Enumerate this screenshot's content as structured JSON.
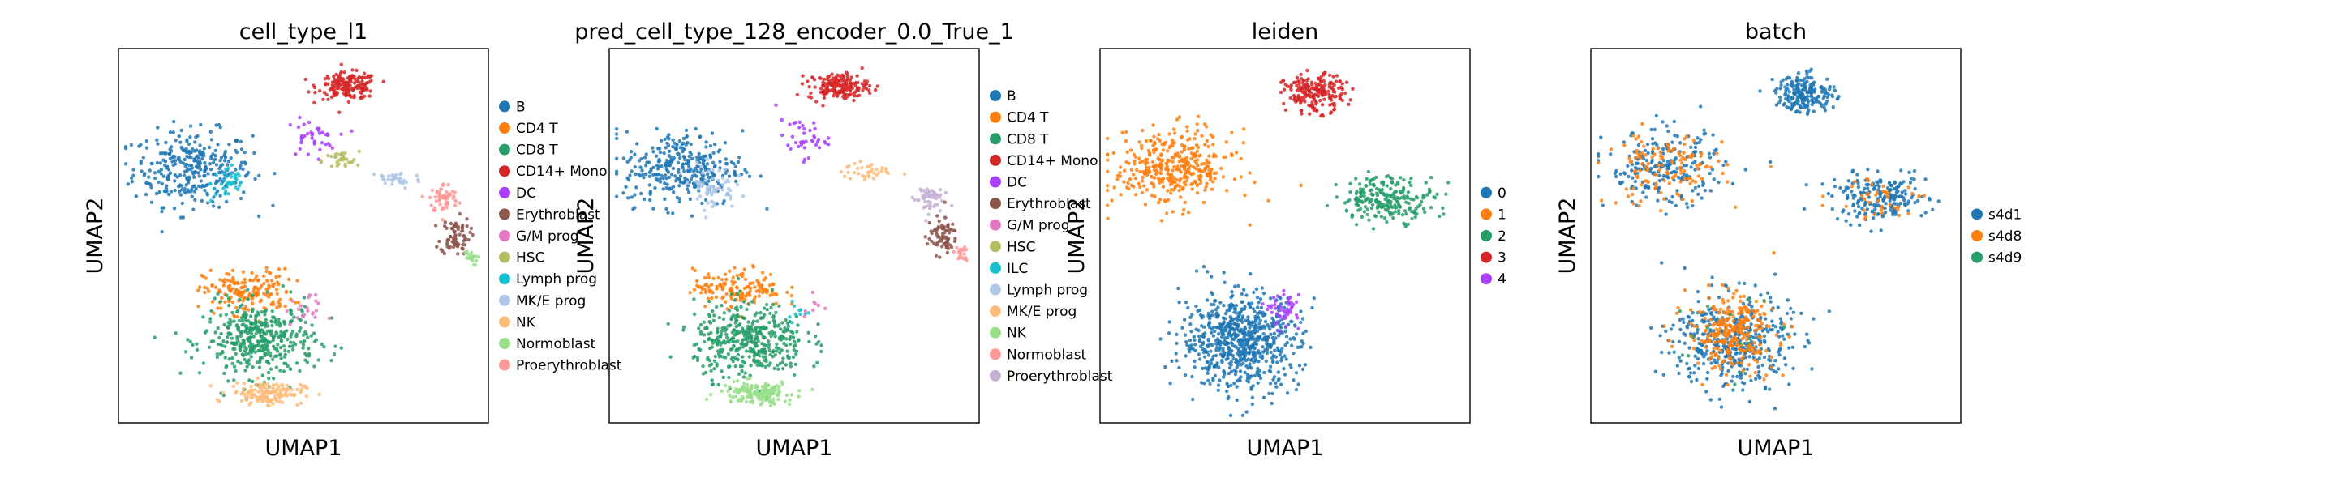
{
  "chart_data": [
    {
      "type": "scatter",
      "title": "cell_type_l1",
      "xlabel": "UMAP1",
      "ylabel": "UMAP2",
      "grid": false,
      "legend_position": "right",
      "legend": [
        {
          "label": "B",
          "color": "#1f77b4"
        },
        {
          "label": "CD4 T",
          "color": "#ff7f0e"
        },
        {
          "label": "CD8 T",
          "color": "#279e68"
        },
        {
          "label": "CD14+ Mono",
          "color": "#d62728"
        },
        {
          "label": "DC",
          "color": "#aa40fc"
        },
        {
          "label": "Erythroblast",
          "color": "#8c564b"
        },
        {
          "label": "G/M prog",
          "color": "#e377c2"
        },
        {
          "label": "HSC",
          "color": "#b5bd61"
        },
        {
          "label": "Lymph prog",
          "color": "#17becf"
        },
        {
          "label": "MK/E prog",
          "color": "#aec7e8"
        },
        {
          "label": "NK",
          "color": "#ffbb78"
        },
        {
          "label": "Normoblast",
          "color": "#98df8a"
        },
        {
          "label": "Proerythroblast",
          "color": "#ff9896"
        }
      ],
      "clusters": [
        {
          "label": "B",
          "center": [
            0.2,
            0.68
          ],
          "spread": [
            0.16,
            0.1
          ],
          "n": 320
        },
        {
          "label": "Lymph prog",
          "center": [
            0.3,
            0.64
          ],
          "spread": [
            0.05,
            0.05
          ],
          "n": 40
        },
        {
          "label": "CD14+ Mono",
          "center": [
            0.62,
            0.9
          ],
          "spread": [
            0.08,
            0.035
          ],
          "n": 170
        },
        {
          "label": "DC",
          "center": [
            0.52,
            0.76
          ],
          "spread": [
            0.07,
            0.05
          ],
          "n": 40
        },
        {
          "label": "HSC",
          "center": [
            0.6,
            0.7
          ],
          "spread": [
            0.05,
            0.025
          ],
          "n": 30
        },
        {
          "label": "MK/E prog",
          "center": [
            0.75,
            0.65
          ],
          "spread": [
            0.07,
            0.025
          ],
          "n": 35
        },
        {
          "label": "Proerythroblast",
          "center": [
            0.88,
            0.6
          ],
          "spread": [
            0.04,
            0.04
          ],
          "n": 55
        },
        {
          "label": "Erythroblast",
          "center": [
            0.91,
            0.5
          ],
          "spread": [
            0.04,
            0.05
          ],
          "n": 75
        },
        {
          "label": "Normoblast",
          "center": [
            0.95,
            0.44
          ],
          "spread": [
            0.02,
            0.02
          ],
          "n": 20
        },
        {
          "label": "CD4 T",
          "center": [
            0.35,
            0.35
          ],
          "spread": [
            0.12,
            0.06
          ],
          "n": 170
        },
        {
          "label": "CD8 T",
          "center": [
            0.38,
            0.22
          ],
          "spread": [
            0.15,
            0.1
          ],
          "n": 420
        },
        {
          "label": "NK",
          "center": [
            0.4,
            0.08
          ],
          "spread": [
            0.1,
            0.03
          ],
          "n": 140
        },
        {
          "label": "G/M prog",
          "center": [
            0.5,
            0.3
          ],
          "spread": [
            0.05,
            0.04
          ],
          "n": 20
        }
      ]
    },
    {
      "type": "scatter",
      "title": "pred_cell_type_128_encoder_0.0_True_1",
      "xlabel": "UMAP1",
      "ylabel": "UMAP2",
      "grid": false,
      "legend_position": "right",
      "legend": [
        {
          "label": "B",
          "color": "#1f77b4"
        },
        {
          "label": "CD4 T",
          "color": "#ff7f0e"
        },
        {
          "label": "CD8 T",
          "color": "#279e68"
        },
        {
          "label": "CD14+ Mono",
          "color": "#d62728"
        },
        {
          "label": "DC",
          "color": "#aa40fc"
        },
        {
          "label": "Erythroblast",
          "color": "#8c564b"
        },
        {
          "label": "G/M prog",
          "color": "#e377c2"
        },
        {
          "label": "HSC",
          "color": "#b5bd61"
        },
        {
          "label": "ILC",
          "color": "#17becf"
        },
        {
          "label": "Lymph prog",
          "color": "#aec7e8"
        },
        {
          "label": "MK/E prog",
          "color": "#ffbb78"
        },
        {
          "label": "NK",
          "color": "#98df8a"
        },
        {
          "label": "Normoblast",
          "color": "#ff9896"
        },
        {
          "label": "Proerythroblast",
          "color": "#c5b0d5"
        }
      ],
      "clusters": [
        {
          "label": "B",
          "center": [
            0.2,
            0.68
          ],
          "spread": [
            0.16,
            0.1
          ],
          "n": 320
        },
        {
          "label": "Lymph prog",
          "center": [
            0.28,
            0.63
          ],
          "spread": [
            0.06,
            0.06
          ],
          "n": 60
        },
        {
          "label": "CD14+ Mono",
          "center": [
            0.62,
            0.9
          ],
          "spread": [
            0.08,
            0.035
          ],
          "n": 170
        },
        {
          "label": "DC",
          "center": [
            0.52,
            0.76
          ],
          "spread": [
            0.07,
            0.05
          ],
          "n": 40
        },
        {
          "label": "MK/E prog",
          "center": [
            0.7,
            0.67
          ],
          "spread": [
            0.07,
            0.025
          ],
          "n": 35
        },
        {
          "label": "Proerythroblast",
          "center": [
            0.86,
            0.6
          ],
          "spread": [
            0.04,
            0.04
          ],
          "n": 55
        },
        {
          "label": "Erythroblast",
          "center": [
            0.9,
            0.5
          ],
          "spread": [
            0.04,
            0.05
          ],
          "n": 75
        },
        {
          "label": "Normoblast",
          "center": [
            0.95,
            0.45
          ],
          "spread": [
            0.02,
            0.02
          ],
          "n": 20
        },
        {
          "label": "CD4 T",
          "center": [
            0.35,
            0.36
          ],
          "spread": [
            0.12,
            0.05
          ],
          "n": 150
        },
        {
          "label": "CD8 T",
          "center": [
            0.38,
            0.22
          ],
          "spread": [
            0.15,
            0.1
          ],
          "n": 420
        },
        {
          "label": "NK",
          "center": [
            0.4,
            0.08
          ],
          "spread": [
            0.1,
            0.03
          ],
          "n": 150
        },
        {
          "label": "ILC",
          "center": [
            0.5,
            0.3
          ],
          "spread": [
            0.03,
            0.03
          ],
          "n": 10
        },
        {
          "label": "G/M prog",
          "center": [
            0.55,
            0.32
          ],
          "spread": [
            0.03,
            0.03
          ],
          "n": 8
        }
      ]
    },
    {
      "type": "scatter",
      "title": "leiden",
      "xlabel": "UMAP1",
      "ylabel": "UMAP2",
      "grid": false,
      "legend_position": "right",
      "legend": [
        {
          "label": "0",
          "color": "#1f77b4"
        },
        {
          "label": "1",
          "color": "#ff7f0e"
        },
        {
          "label": "2",
          "color": "#279e68"
        },
        {
          "label": "3",
          "color": "#d62728"
        },
        {
          "label": "4",
          "color": "#aa40fc"
        }
      ],
      "clusters": [
        {
          "label": "1",
          "center": [
            0.2,
            0.68
          ],
          "spread": [
            0.16,
            0.1
          ],
          "n": 380
        },
        {
          "label": "3",
          "center": [
            0.58,
            0.88
          ],
          "spread": [
            0.08,
            0.05
          ],
          "n": 200
        },
        {
          "label": "2",
          "center": [
            0.78,
            0.6
          ],
          "spread": [
            0.13,
            0.06
          ],
          "n": 230
        },
        {
          "label": "0",
          "center": [
            0.38,
            0.22
          ],
          "spread": [
            0.16,
            0.13
          ],
          "n": 700
        },
        {
          "label": "4",
          "center": [
            0.5,
            0.3
          ],
          "spread": [
            0.04,
            0.04
          ],
          "n": 50
        }
      ]
    },
    {
      "type": "scatter",
      "title": "batch",
      "xlabel": "UMAP1",
      "ylabel": "UMAP2",
      "grid": false,
      "legend_position": "right",
      "legend": [
        {
          "label": "s4d1",
          "color": "#1f77b4"
        },
        {
          "label": "s4d8",
          "color": "#ff7f0e"
        },
        {
          "label": "s4d9",
          "color": "#279e68"
        }
      ],
      "clusters": [
        {
          "label": "s4d1",
          "center": [
            0.2,
            0.68
          ],
          "spread": [
            0.16,
            0.1
          ],
          "n": 220
        },
        {
          "label": "s4d8",
          "center": [
            0.2,
            0.68
          ],
          "spread": [
            0.16,
            0.1
          ],
          "n": 130
        },
        {
          "label": "s4d1",
          "center": [
            0.58,
            0.88
          ],
          "spread": [
            0.08,
            0.05
          ],
          "n": 200
        },
        {
          "label": "s4d1",
          "center": [
            0.78,
            0.6
          ],
          "spread": [
            0.13,
            0.06
          ],
          "n": 200
        },
        {
          "label": "s4d8",
          "center": [
            0.78,
            0.6
          ],
          "spread": [
            0.13,
            0.06
          ],
          "n": 40
        },
        {
          "label": "s4d1",
          "center": [
            0.38,
            0.22
          ],
          "spread": [
            0.16,
            0.13
          ],
          "n": 430
        },
        {
          "label": "s4d8",
          "center": [
            0.38,
            0.24
          ],
          "spread": [
            0.12,
            0.1
          ],
          "n": 280
        },
        {
          "label": "s4d9",
          "center": [
            0.38,
            0.22
          ],
          "spread": [
            0.15,
            0.12
          ],
          "n": 15
        }
      ]
    }
  ]
}
